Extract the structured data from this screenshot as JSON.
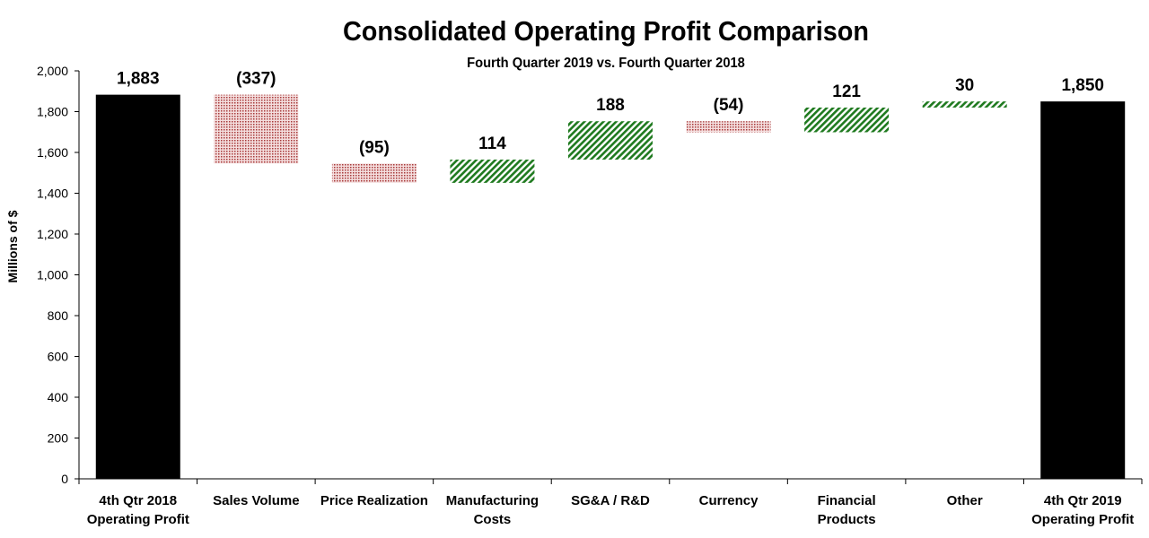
{
  "chart_data": {
    "type": "waterfall",
    "title": "Consolidated Operating Profit Comparison",
    "subtitle": "Fourth Quarter 2019 vs. Fourth Quarter 2018",
    "xlabel": "",
    "ylabel": "Millions of $",
    "ylim": [
      0,
      2000
    ],
    "yticks": [
      "0",
      "200",
      "400",
      "600",
      "800",
      "1,000",
      "1,200",
      "1,400",
      "1,600",
      "1,800",
      "2,000"
    ],
    "grid": false,
    "categories": [
      [
        "4th Qtr 2018",
        "Operating Profit"
      ],
      [
        "Sales Volume"
      ],
      [
        "Price Realization"
      ],
      [
        "Manufacturing",
        "Costs"
      ],
      [
        "SG&A / R&D"
      ],
      [
        "Currency"
      ],
      [
        "Financial",
        "Products"
      ],
      [
        "Other"
      ],
      [
        "4th Qtr 2019",
        "Operating Profit"
      ]
    ],
    "values": [
      1883,
      -337,
      -95,
      114,
      188,
      -54,
      121,
      30,
      1850
    ],
    "kinds": [
      "total",
      "delta",
      "delta",
      "delta",
      "delta",
      "delta",
      "delta",
      "delta",
      "total"
    ],
    "data_labels": [
      "1,883",
      "(337)",
      "(95)",
      "114",
      "188",
      "(54)",
      "121",
      "30",
      "1,850"
    ],
    "colors": {
      "total": "#000000",
      "increase": "#1f7a1f",
      "decrease": "#a83a3a"
    }
  }
}
